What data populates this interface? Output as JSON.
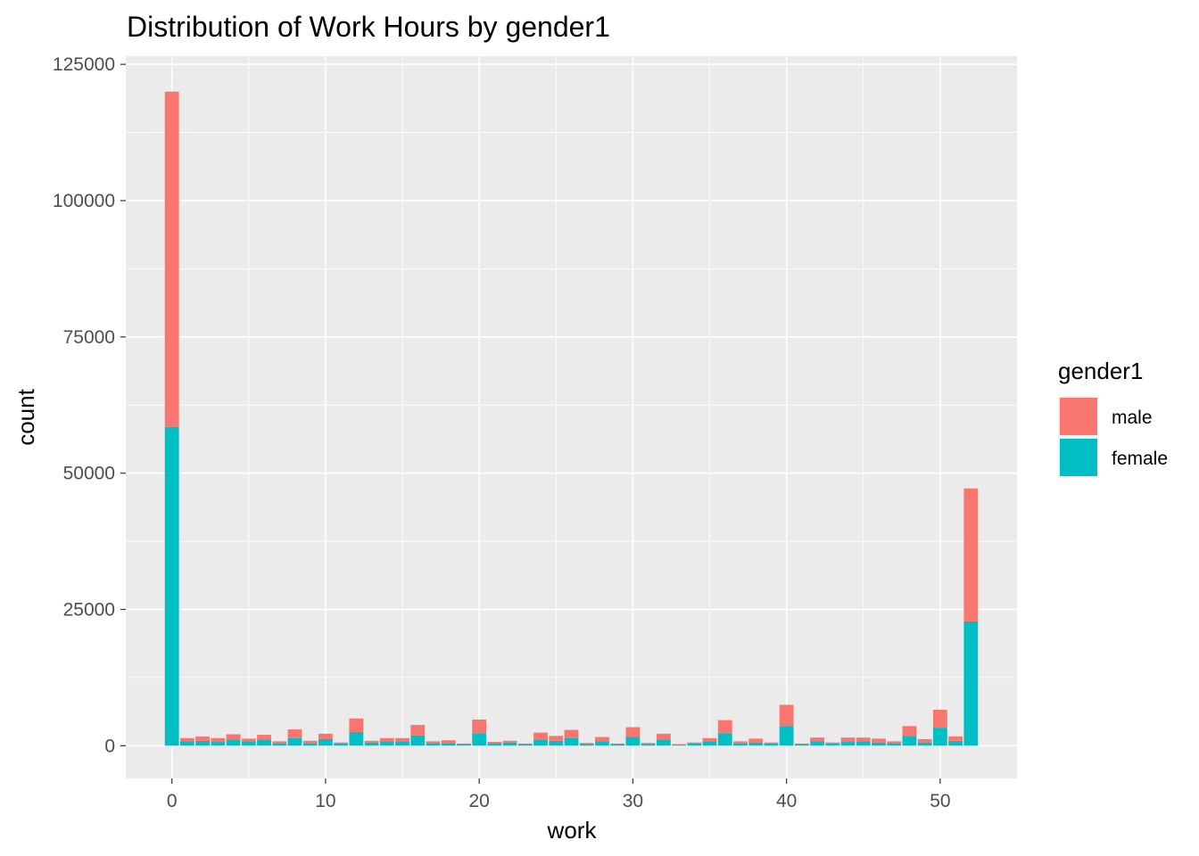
{
  "chart_data": {
    "type": "bar",
    "stacked": true,
    "title": "Distribution of Work Hours by gender1",
    "xlabel": "work",
    "ylabel": "count",
    "xlim": [
      -3,
      55
    ],
    "ylim": [
      -6000,
      126500
    ],
    "x_ticks": [
      0,
      10,
      20,
      30,
      40,
      50
    ],
    "y_ticks": [
      0,
      25000,
      50000,
      75000,
      100000,
      125000
    ],
    "grid": true,
    "legend": {
      "title": "gender1",
      "position": "right"
    },
    "x": [
      0,
      1,
      2,
      3,
      4,
      5,
      6,
      7,
      8,
      9,
      10,
      11,
      12,
      13,
      14,
      15,
      16,
      17,
      18,
      19,
      20,
      21,
      22,
      23,
      24,
      25,
      26,
      27,
      28,
      29,
      30,
      31,
      32,
      33,
      34,
      35,
      36,
      37,
      38,
      39,
      40,
      41,
      42,
      43,
      44,
      45,
      46,
      47,
      48,
      49,
      50,
      51,
      52
    ],
    "series": [
      {
        "name": "female",
        "color": "#00BFC4",
        "values": [
          58500,
          800,
          900,
          700,
          1100,
          800,
          1100,
          500,
          1400,
          500,
          1200,
          400,
          2500,
          600,
          800,
          800,
          1900,
          500,
          500,
          300,
          2300,
          500,
          600,
          300,
          1100,
          900,
          1400,
          300,
          800,
          300,
          1600,
          300,
          1100,
          200,
          400,
          800,
          2300,
          500,
          600,
          400,
          3600,
          300,
          800,
          400,
          700,
          800,
          600,
          500,
          1800,
          600,
          3300,
          900,
          22800
        ]
      },
      {
        "name": "male",
        "color": "#F8766D",
        "values": [
          61500,
          600,
          800,
          700,
          1000,
          500,
          900,
          300,
          1600,
          400,
          1000,
          200,
          2500,
          300,
          600,
          600,
          1900,
          300,
          500,
          100,
          2500,
          200,
          300,
          100,
          1300,
          900,
          1500,
          200,
          800,
          100,
          1800,
          200,
          1100,
          100,
          200,
          600,
          2400,
          300,
          700,
          200,
          3900,
          100,
          700,
          200,
          800,
          700,
          700,
          300,
          1800,
          600,
          3300,
          800,
          24400
        ]
      }
    ],
    "legend_order": [
      "male",
      "female"
    ]
  }
}
